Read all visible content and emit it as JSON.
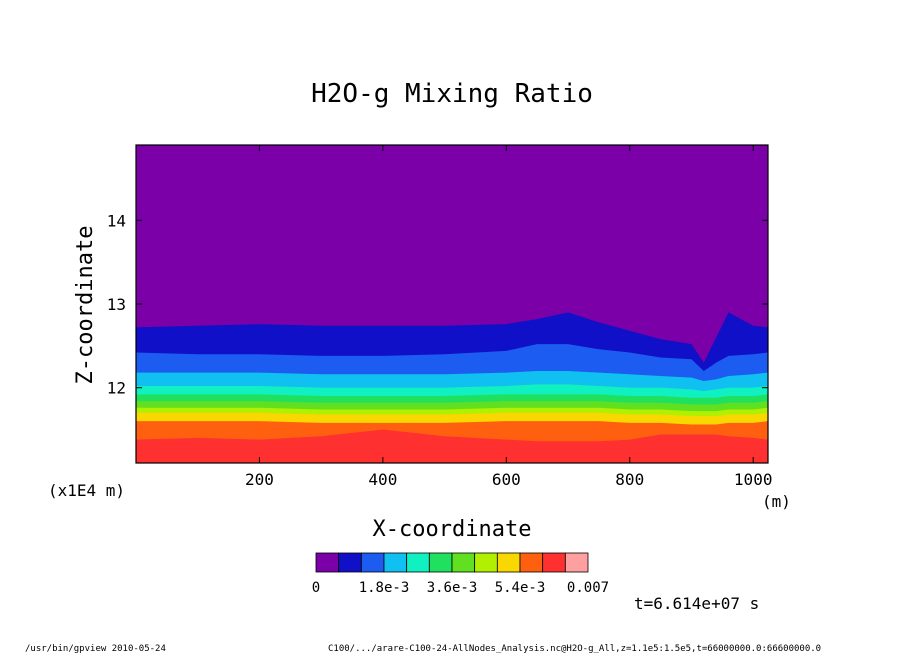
{
  "app": {
    "footer_left": "/usr/bin/gpview  2010-05-24",
    "footer_right": "C100/.../arare-C100-24-AllNodes_Analysis.nc@H2O-g_All,z=1.1e5:1.5e5,t=66000000.0:66600000.0"
  },
  "chart_data": {
    "type": "heatmap",
    "title": "H2O-g Mixing Ratio",
    "xlabel": "X-coordinate",
    "ylabel": "Z-coordinate",
    "x_unit": "(m)",
    "y_unit": "(x1E4 m)",
    "xlim": [
      0,
      1024
    ],
    "ylim": [
      11.1,
      14.9
    ],
    "x_ticks": [
      200,
      400,
      600,
      800,
      1000
    ],
    "y_ticks": [
      12,
      13,
      14
    ],
    "time_label": "t=6.614e+07 s",
    "colorbar": {
      "levels": [
        0,
        0.0006,
        0.0012,
        0.0018,
        0.0024,
        0.003,
        0.0036,
        0.0042,
        0.0048,
        0.0054,
        0.006,
        0.0066,
        0.007
      ],
      "tick_labels": [
        "0",
        "1.8e-3",
        "3.6e-3",
        "5.4e-3",
        "0.007"
      ],
      "colors": [
        "#7b00a8",
        "#1010c8",
        "#1c5cf0",
        "#10c0f0",
        "#10f0c0",
        "#20e060",
        "#60e020",
        "#b0f000",
        "#f8d800",
        "#ff6010",
        "#ff3030",
        "#ffa0a0"
      ]
    },
    "contours": {
      "x": [
        0,
        100,
        200,
        300,
        400,
        500,
        600,
        650,
        700,
        750,
        800,
        850,
        900,
        920,
        940,
        960,
        1000,
        1024
      ],
      "z_top_of_level_1": [
        12.72,
        12.74,
        12.76,
        12.74,
        12.74,
        12.74,
        12.76,
        12.82,
        12.9,
        12.78,
        12.68,
        12.58,
        12.52,
        12.3,
        12.6,
        12.9,
        12.74,
        12.72
      ],
      "z_top_of_level_2": [
        12.42,
        12.4,
        12.4,
        12.38,
        12.38,
        12.4,
        12.44,
        12.52,
        12.52,
        12.46,
        12.42,
        12.36,
        12.34,
        12.2,
        12.3,
        12.38,
        12.4,
        12.42
      ],
      "z_top_of_level_3": [
        12.18,
        12.18,
        12.18,
        12.16,
        12.16,
        12.16,
        12.18,
        12.2,
        12.2,
        12.18,
        12.16,
        12.14,
        12.12,
        12.08,
        12.1,
        12.14,
        12.16,
        12.18
      ],
      "z_top_of_level_4": [
        12.02,
        12.02,
        12.02,
        12.0,
        12.0,
        12.0,
        12.02,
        12.04,
        12.04,
        12.02,
        12.0,
        12.0,
        11.98,
        11.96,
        11.98,
        12.0,
        12.0,
        12.02
      ],
      "z_top_of_level_5": [
        11.92,
        11.92,
        11.92,
        11.9,
        11.9,
        11.9,
        11.92,
        11.92,
        11.92,
        11.92,
        11.9,
        11.9,
        11.88,
        11.88,
        11.88,
        11.9,
        11.9,
        11.92
      ],
      "z_top_of_level_6": [
        11.84,
        11.84,
        11.84,
        11.82,
        11.82,
        11.82,
        11.84,
        11.84,
        11.84,
        11.84,
        11.82,
        11.82,
        11.8,
        11.8,
        11.8,
        11.82,
        11.82,
        11.84
      ],
      "z_top_of_level_7": [
        11.76,
        11.76,
        11.76,
        11.74,
        11.74,
        11.74,
        11.76,
        11.76,
        11.76,
        11.76,
        11.74,
        11.74,
        11.72,
        11.72,
        11.72,
        11.74,
        11.74,
        11.76
      ],
      "z_top_of_level_8": [
        11.7,
        11.7,
        11.7,
        11.68,
        11.68,
        11.68,
        11.7,
        11.7,
        11.7,
        11.7,
        11.68,
        11.68,
        11.66,
        11.66,
        11.66,
        11.68,
        11.68,
        11.7
      ],
      "z_top_of_level_9": [
        11.6,
        11.6,
        11.6,
        11.58,
        11.58,
        11.58,
        11.6,
        11.6,
        11.6,
        11.6,
        11.58,
        11.58,
        11.56,
        11.56,
        11.56,
        11.58,
        11.58,
        11.6
      ],
      "z_top_of_level_10": [
        11.38,
        11.4,
        11.38,
        11.42,
        11.5,
        11.42,
        11.38,
        11.36,
        11.36,
        11.36,
        11.38,
        11.44,
        11.44,
        11.44,
        11.44,
        11.42,
        11.4,
        11.38
      ]
    }
  }
}
